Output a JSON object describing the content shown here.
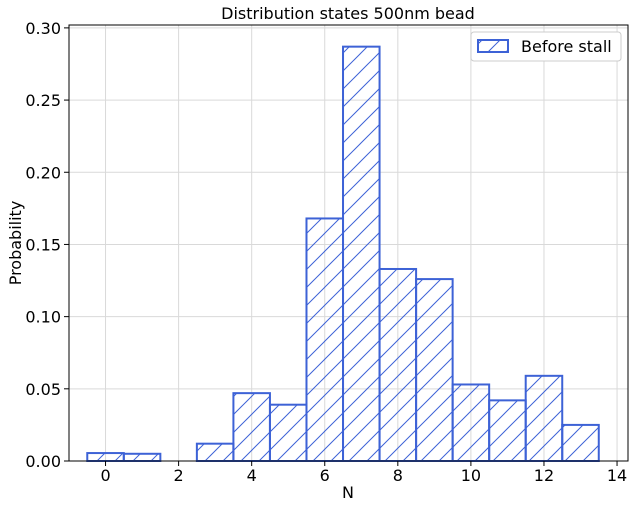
{
  "chart_data": {
    "type": "bar",
    "title": "Distribution states 500nm bead",
    "xlabel": "N",
    "ylabel": "Probability",
    "xlim": [
      -1,
      14.3
    ],
    "ylim": [
      0,
      0.302
    ],
    "xticks": [
      0,
      2,
      4,
      6,
      8,
      10,
      12,
      14
    ],
    "yticks": [
      0.0,
      0.05,
      0.1,
      0.15,
      0.2,
      0.25,
      0.3
    ],
    "ytick_labels": [
      "0.00",
      "0.05",
      "0.10",
      "0.15",
      "0.20",
      "0.25",
      "0.30"
    ],
    "grid": true,
    "legend_position": "top-right",
    "bar_width": 1,
    "hatch": "diagonal",
    "series": [
      {
        "name": "Before stall",
        "color": "#3d62d6",
        "x": [
          0,
          1,
          3,
          4,
          5,
          6,
          7,
          8,
          9,
          10,
          11,
          12,
          13
        ],
        "values": [
          0.0055,
          0.005,
          0.012,
          0.047,
          0.039,
          0.168,
          0.287,
          0.133,
          0.126,
          0.053,
          0.042,
          0.059,
          0.025
        ]
      }
    ]
  }
}
